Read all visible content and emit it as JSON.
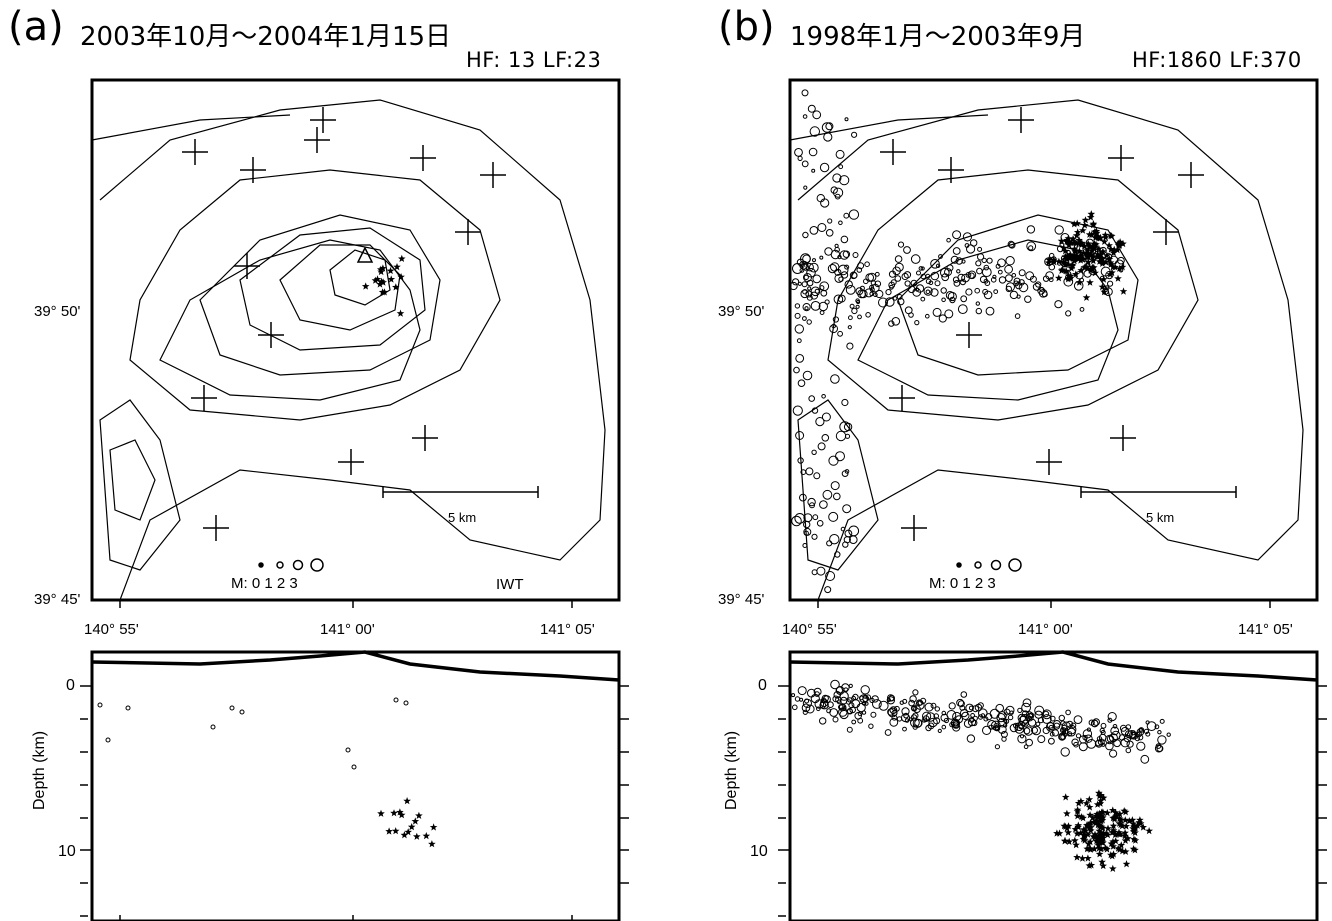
{
  "figure": {
    "panels": [
      {
        "letter": "(a)",
        "title": "2003年10月～2004年1月15日",
        "counts": "HF: 13 LF:23",
        "lat_labels": [
          "39° 50'",
          "39° 45'"
        ],
        "lon_labels": [
          "140° 55'",
          "141° 00'",
          "141° 05'"
        ],
        "scale_label": "5 km",
        "magnitude_label": "M: 0  1  2  3",
        "station_label": "IWT",
        "depth_axis_label": "Depth (km)",
        "depth_ticks": [
          "0",
          "10"
        ]
      },
      {
        "letter": "(b)",
        "title": "1998年1月～2003年9月",
        "counts": "HF:1860 LF:370",
        "lat_labels": [
          "39° 50'",
          "39° 45'"
        ],
        "lon_labels": [
          "140° 55'",
          "141° 00'",
          "141° 05'"
        ],
        "scale_label": "5 km",
        "magnitude_label": "M: 0  1  2  3",
        "depth_axis_label": "Depth (km)",
        "depth_ticks": [
          "0",
          "10"
        ]
      }
    ],
    "colors": {
      "ink": "#000000",
      "background": "#ffffff"
    },
    "symbols": {
      "high_frequency": "open-circle",
      "low_frequency": "star",
      "station": "cross"
    }
  }
}
